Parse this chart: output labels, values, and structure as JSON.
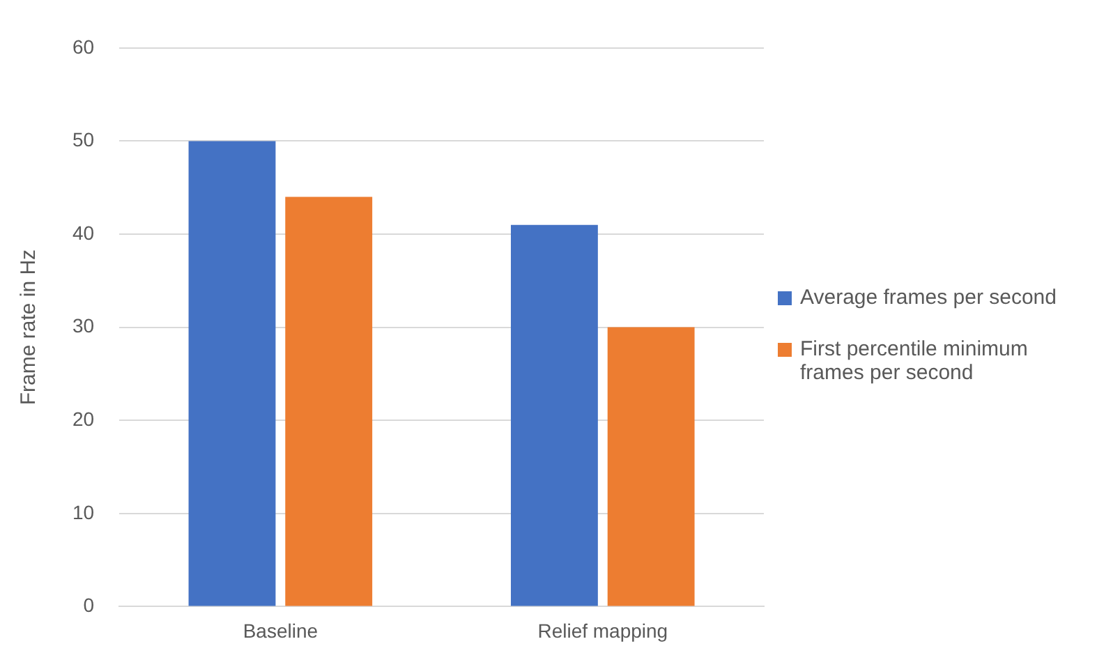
{
  "chart_data": {
    "type": "bar",
    "ylabel": "Frame rate in Hz",
    "categories": [
      "Baseline",
      "Relief mapping"
    ],
    "series": [
      {
        "name": "Average frames per second",
        "color": "#4472c4",
        "values": [
          50,
          41
        ]
      },
      {
        "name": "First percentile minimum frames per second",
        "color": "#ed7d31",
        "values": [
          44,
          30
        ]
      }
    ],
    "ylim": [
      0,
      60
    ],
    "yticks": [
      0,
      10,
      20,
      30,
      40,
      50,
      60
    ],
    "grid": "y",
    "legend": "right"
  }
}
